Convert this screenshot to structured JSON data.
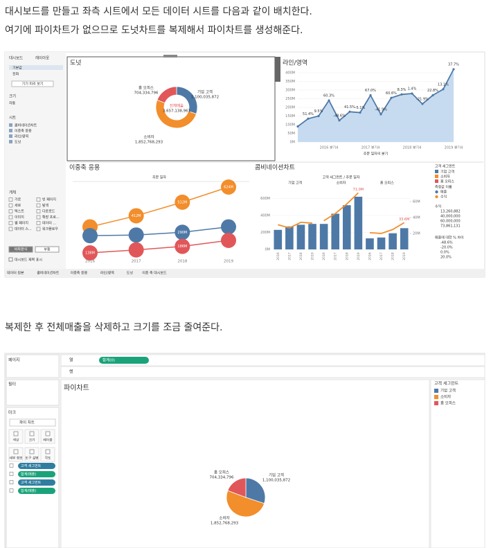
{
  "text": {
    "p1": "대시보드를 만들고 좌측 시트에서 모든 데이터 시트를 다음과 같이 배치한다.",
    "p2": "여기에 파이차트가 없으므로 도넛차트를 복제해서 파이차트를 생성해준다.",
    "p3": "복제한 후 전체매출을 삭제하고 크기를 조금 줄여준다."
  },
  "dashboard": {
    "sidebar": {
      "tabs": [
        "대시보드",
        "레이아웃"
      ],
      "devices": [
        "기본값",
        "전화"
      ],
      "preview": "기기 미리 보기",
      "size_label": "크기",
      "size": "자동",
      "sheets_label": "시트",
      "sheets": [
        "콤비네이션차트",
        "이중축 응용",
        "라인/영역",
        "도넛"
      ],
      "objects_label": "개체",
      "objects": [
        "가로",
        "빈 페이지",
        "세로",
        "탐색",
        "텍스트",
        "다운로드",
        "이미지",
        "확장 프로...",
        "웹 페이지",
        "데이터 ...",
        "데이터 스...",
        "워크플로우"
      ],
      "layout_buttons": [
        "바둑판식",
        "부동"
      ],
      "show_title": "대시보드 제목 표시"
    },
    "donut": {
      "type": "pie",
      "title": "도넛",
      "categories": [
        "기업 고객",
        "소비자",
        "홈 오피스"
      ],
      "values": [
        1100035872,
        1852768293,
        704334796
      ],
      "value_labels": [
        "1,100,035,872",
        "1,852,768,293",
        "704,334,796"
      ],
      "colors": [
        "#4e79a7",
        "#f28e2b",
        "#e15759"
      ],
      "center_label": "전체매출",
      "center_value": 3657138961,
      "center_value_label": "3,657,138,961"
    },
    "line": {
      "type": "area",
      "title": "라인/영역",
      "x_label": "주문 일자의 분기",
      "categories": [
        null,
        null,
        null,
        "2016 분기4",
        null,
        null,
        null,
        "2017 분기4",
        null,
        null,
        null,
        "2018 분기4",
        null,
        null,
        null,
        "2019 분기4"
      ],
      "values": [
        90,
        135,
        150,
        240,
        125,
        175,
        170,
        270,
        160,
        255,
        275,
        280,
        220,
        270,
        305,
        420
      ],
      "point_labels": [
        null,
        "51.4%",
        "9.5%",
        "60.3%",
        "-48.6%",
        "41.5%",
        "-5.1%",
        "67.0%",
        "-41.9%",
        "60.6%",
        "8.3%",
        "1.4%",
        "-21.9%",
        "22.8%",
        "13.1%",
        "37.7%"
      ],
      "color": "#4e79a7",
      "ylim": [
        0,
        400
      ],
      "yticks": [
        {
          "value": 0,
          "label": "0M"
        },
        {
          "value": 50,
          "label": "50M"
        },
        {
          "value": 100,
          "label": "100M"
        },
        {
          "value": 150,
          "label": "150M"
        },
        {
          "value": 200,
          "label": "200M"
        },
        {
          "value": 250,
          "label": "250M"
        },
        {
          "value": 300,
          "label": "300M"
        },
        {
          "value": 350,
          "label": "350M"
        },
        {
          "value": 400,
          "label": "400M"
        }
      ]
    },
    "dots": {
      "type": "dot-line",
      "title": "이중축 응용",
      "x_title": "주문 일자",
      "categories": [
        "2016",
        "2017",
        "2018",
        "2019"
      ],
      "series": [
        {
          "name": "소비자",
          "color": "#f28e2b",
          "values": [
            330,
            412,
            512,
            624
          ],
          "value_labels": [
            null,
            "412M",
            "512M",
            "624M"
          ]
        },
        {
          "name": "기업 고객",
          "color": "#4e79a7",
          "values": [
            265,
            270,
            290,
            330
          ],
          "value_labels": [
            null,
            null,
            "290M",
            null
          ]
        },
        {
          "name": "홈 오피스",
          "color": "#e15759",
          "values": [
            138,
            160,
            186,
            230
          ],
          "value_labels": [
            "138M",
            null,
            "186M",
            null
          ]
        }
      ]
    },
    "combo": {
      "type": "bar-line",
      "title": "콤비네이션차트",
      "header": "고객 세그먼트 / 주문 일자",
      "groups": [
        "기업 고객",
        "소비자",
        "홈 오피스"
      ],
      "years": [
        "2016",
        "2017",
        "2018",
        "2019"
      ],
      "bar_color": "#4e79a7",
      "line_color": "#f28e2b",
      "bars": [
        230,
        270,
        290,
        300,
        300,
        420,
        520,
        620,
        130,
        140,
        190,
        250
      ],
      "line": [
        31,
        27,
        34,
        33,
        36,
        45,
        57,
        71,
        21,
        20,
        25,
        33.6
      ],
      "line_labels": [
        null,
        null,
        null,
        null,
        null,
        null,
        null,
        "71.0M",
        null,
        null,
        null,
        "33.6M"
      ],
      "ylim": [
        0,
        750
      ],
      "yticks": [
        {
          "value": 0,
          "label": "0M"
        },
        {
          "value": 200,
          "label": "200M"
        },
        {
          "value": 400,
          "label": "400M"
        },
        {
          "value": 600,
          "label": "600M"
        }
      ],
      "y2lim": [
        0,
        80
      ],
      "y2ticks": [
        {
          "value": 20,
          "label": "20M"
        },
        {
          "value": 40,
          "label": "40M"
        },
        {
          "value": 60,
          "label": "60M"
        }
      ]
    },
    "legend": {
      "title": "고객 세그먼트",
      "items": [
        "기업 고객",
        "소비자",
        "홈 오피스"
      ],
      "colors": [
        "#4e79a7",
        "#f28e2b",
        "#e15759"
      ],
      "measure_title": "측정값 이름",
      "measures": [
        "매출",
        "수익"
      ],
      "profit_title": "수익",
      "profit_values": [
        "13,260,882",
        "40,000,000",
        "60,000,000",
        "73,861,131"
      ],
      "diff_title": "매출에 대한 % 차이",
      "diff_values": [
        "-48.6%",
        "-20.0%",
        "0.0%",
        "20.0%"
      ]
    },
    "tabs": [
      "데이터 원본",
      "콤비네이션차트",
      "이중축 응용",
      "라인/영역",
      "도넛",
      "이중 축 대시보드"
    ]
  },
  "worksheet": {
    "pages": "페이지",
    "filters": "필터",
    "marks": "마크",
    "mark_type": "파이 차트",
    "mark_buttons": [
      "색상",
      "크기",
      "레이블",
      "세부 정보",
      "도구 설명",
      "각도"
    ],
    "mark_pills": [
      "고객 세그먼트",
      "합계(매출)",
      "고객 세그먼트",
      "합계(매출)"
    ],
    "columns": "열",
    "rows": "행",
    "column_pill": "합계(0)",
    "pie": {
      "type": "pie",
      "title": "파이차트",
      "categories": [
        "기업 고객",
        "소비자",
        "홈 오피스"
      ],
      "values": [
        1100035872,
        1852768293,
        704334796
      ],
      "value_labels": [
        "1,100,035,872",
        "1,852,768,293",
        "704,334,796"
      ],
      "colors": [
        "#4e79a7",
        "#f28e2b",
        "#e15759"
      ]
    },
    "legend_title": "고객 세그먼트"
  }
}
